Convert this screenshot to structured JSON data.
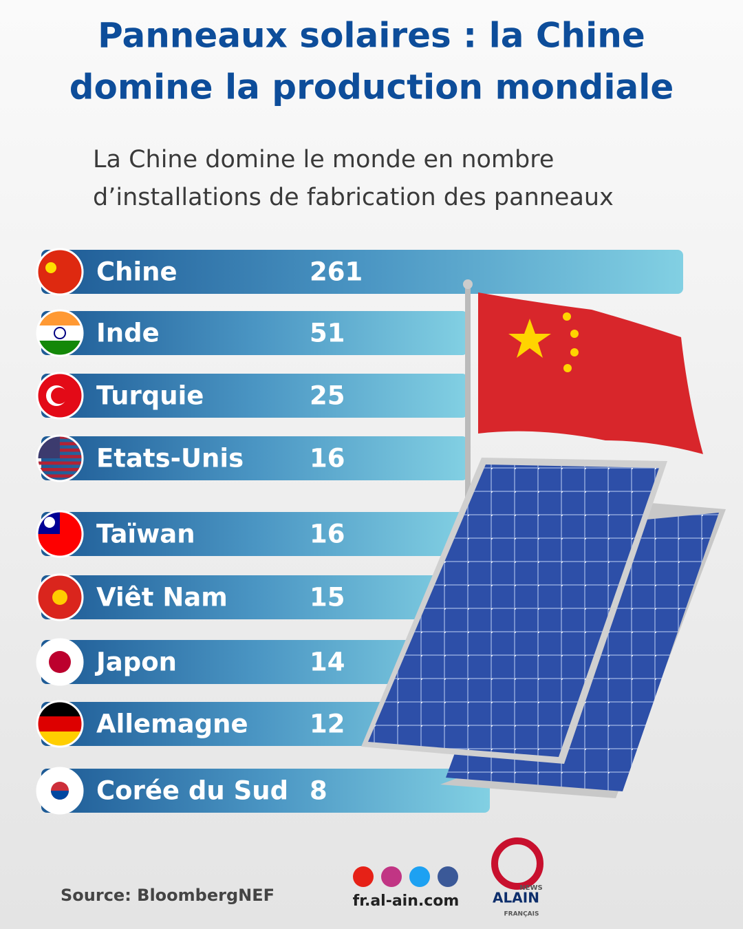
{
  "header": {
    "title_line1": "Panneaux solaires : la Chine",
    "title_line2": "domine la production mondiale",
    "subtitle_line1": "La Chine domine le monde en nombre",
    "subtitle_line2": "d’installations de fabrication des panneaux"
  },
  "rows": [
    {
      "country": "Chine",
      "value": 261
    },
    {
      "country": "Inde",
      "value": 51
    },
    {
      "country": "Turquie",
      "value": 25
    },
    {
      "country": "Etats-Unis",
      "value": 16
    },
    {
      "country": "Taïwan",
      "value": 16
    },
    {
      "country": "Viêt Nam",
      "value": 15
    },
    {
      "country": "Japon",
      "value": 14
    },
    {
      "country": "Allemagne",
      "value": 12
    },
    {
      "country": "Corée du Sud",
      "value": 8
    }
  ],
  "footer": {
    "source": "Source: BloombergNEF",
    "website": "fr.al-ain.com",
    "logo_news": "NEWS",
    "logo_name": "ALAIN",
    "logo_lang": "FRANÇAIS"
  }
}
